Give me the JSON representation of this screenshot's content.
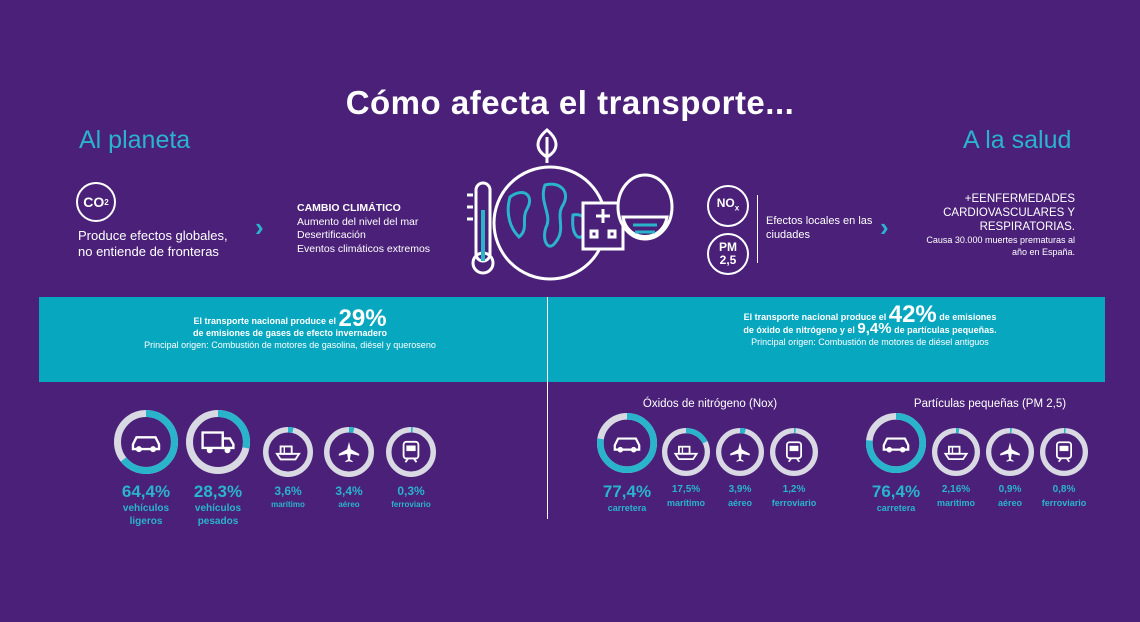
{
  "title": "Cómo afecta el transporte...",
  "planet": {
    "heading": "Al planeta",
    "co2": "CO",
    "co2_sub": "2",
    "text": "Produce efectos globales, no entiende de fronteras",
    "climate_heading": "CAMBIO CLIMÁTICO",
    "climate_lines": [
      "Aumento del nivel del mar",
      "Desertificación",
      "Eventos climáticos extremos"
    ],
    "band_pre": "El transporte nacional produce el",
    "band_pct": "29%",
    "band_post": "de emisiones de gases de efecto invernadero",
    "band_origin": "Principal origen: Combustión de motores de gasolina, diésel y queroseno",
    "stats": [
      {
        "value": "64,4%",
        "label": "vehículos ligeros",
        "fraction": 0.644,
        "icon": "car-icon"
      },
      {
        "value": "28,3%",
        "label": "vehículos pesados",
        "fraction": 0.283,
        "icon": "truck-icon"
      },
      {
        "value": "3,6%",
        "label": "marítimo",
        "fraction": 0.036,
        "icon": "ship-icon"
      },
      {
        "value": "3,4%",
        "label": "aéreo",
        "fraction": 0.034,
        "icon": "plane-icon"
      },
      {
        "value": "0,3%",
        "label": "ferroviario",
        "fraction": 0.003,
        "icon": "train-icon"
      }
    ]
  },
  "health": {
    "heading": "A la salud",
    "nox": "NO",
    "nox_sub": "x",
    "pm_line1": "PM",
    "pm_line2": "2,5",
    "local_text": "Efectos locales en las ciudades",
    "main_text": "+EENFERMEDADES CARDIOVASCULARES Y RESPIRATORIAS.",
    "sub_text": "Causa 30.000 muertes prematuras al año en España.",
    "band_pre": "El transporte nacional produce el",
    "band_pct": "42%",
    "band_mid": "de emisiones",
    "band_line2_pre": "de óxido de nitrógeno y el",
    "band_pct2": "9,4%",
    "band_line2_post": "de partículas pequeñas.",
    "band_origin": "Principal origen: Combustión de motores de diésel antiguos",
    "nox_title": "Óxidos de nitrógeno (Nox)",
    "nox_stats": [
      {
        "value": "77,4%",
        "label": "carretera",
        "fraction": 0.774,
        "icon": "car-icon"
      },
      {
        "value": "17,5%",
        "label": "marítimo",
        "fraction": 0.175,
        "icon": "ship-icon"
      },
      {
        "value": "3,9%",
        "label": "aéreo",
        "fraction": 0.039,
        "icon": "plane-icon"
      },
      {
        "value": "1,2%",
        "label": "ferroviario",
        "fraction": 0.012,
        "icon": "train-icon"
      }
    ],
    "pm_title": "Partículas pequeñas (PM 2,5)",
    "pm_stats": [
      {
        "value": "76,4%",
        "label": "carretera",
        "fraction": 0.764,
        "icon": "car-icon"
      },
      {
        "value": "2,16%",
        "label": "marítimo",
        "fraction": 0.0216,
        "icon": "ship-icon"
      },
      {
        "value": "0,9%",
        "label": "aéreo",
        "fraction": 0.009,
        "icon": "plane-icon"
      },
      {
        "value": "0,8%",
        "label": "ferroviario",
        "fraction": 0.008,
        "icon": "train-icon"
      }
    ]
  },
  "colors": {
    "background": "#4a2078",
    "accent": "#2ab4cc",
    "band": "#07a7bf",
    "donut_track": "#d9d9e3"
  }
}
